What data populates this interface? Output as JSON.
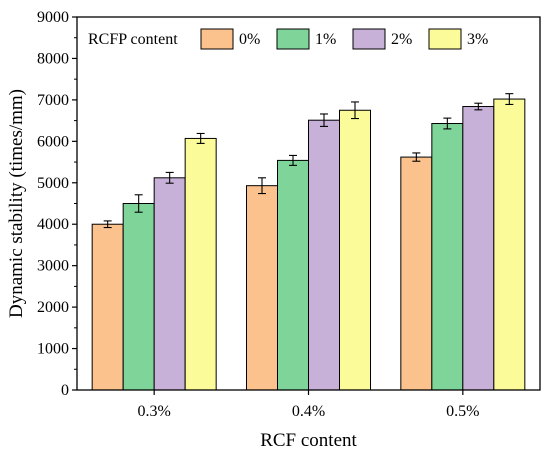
{
  "chart_data": {
    "type": "bar",
    "title": "",
    "xlabel": "RCF content",
    "ylabel": "Dynamic stability (times/mm)",
    "ylim": [
      0,
      9000
    ],
    "yticks": [
      0,
      1000,
      2000,
      3000,
      4000,
      5000,
      6000,
      7000,
      8000,
      9000
    ],
    "categories": [
      "0.3%",
      "0.4%",
      "0.5%"
    ],
    "legend_title": "RCFP content",
    "legend_position": "top",
    "grid": false,
    "series": [
      {
        "name": "0%",
        "color": "#FCC28E",
        "values": [
          4000,
          4930,
          5620
        ],
        "errors": [
          80,
          190,
          100
        ]
      },
      {
        "name": "1%",
        "color": "#7FD49A",
        "values": [
          4500,
          5540,
          6430
        ],
        "errors": [
          210,
          120,
          130
        ]
      },
      {
        "name": "2%",
        "color": "#C8B1D8",
        "values": [
          5120,
          6510,
          6840
        ],
        "errors": [
          130,
          150,
          80
        ]
      },
      {
        "name": "3%",
        "color": "#FBFB9A",
        "values": [
          6070,
          6750,
          7020
        ],
        "errors": [
          120,
          200,
          130
        ]
      }
    ]
  }
}
